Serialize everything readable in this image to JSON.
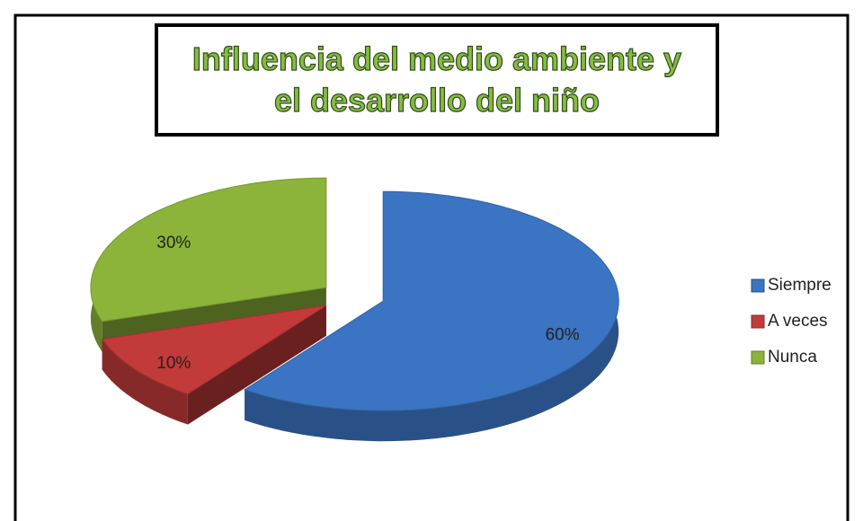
{
  "chart_data": {
    "type": "pie",
    "title": "Influencia del medio ambiente y el desarrollo del niño",
    "categories": [
      "Siempre",
      "A veces",
      "Nunca"
    ],
    "values": [
      60,
      10,
      30
    ],
    "value_labels": [
      "60%",
      "10%",
      "30%"
    ],
    "colors": [
      "#3b74c2",
      "#c23a3a",
      "#8cb43a"
    ],
    "legend": "right"
  }
}
